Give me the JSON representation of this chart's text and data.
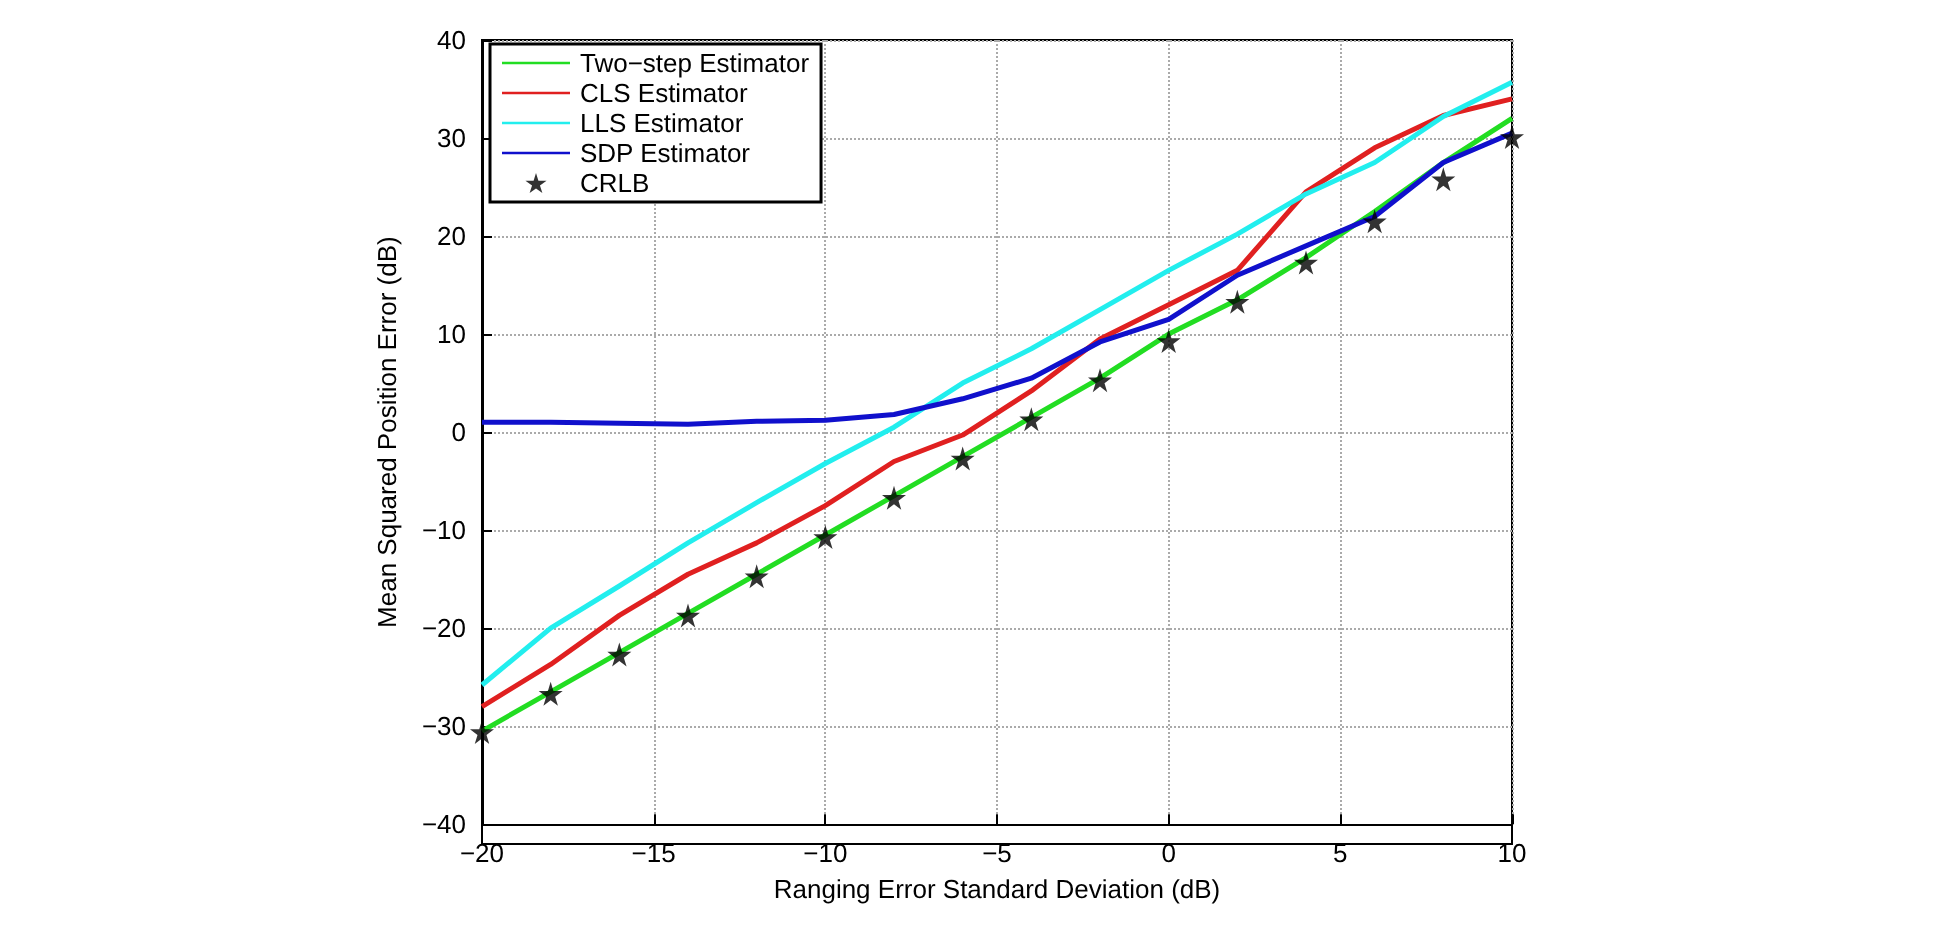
{
  "chart_data": {
    "type": "line",
    "xlabel": "Ranging Error Standard Deviation (dB)",
    "ylabel": "Mean Squared Position Error (dB)",
    "x": [
      -20,
      -18,
      -16,
      -14,
      -12,
      -10,
      -8,
      -6,
      -4,
      -2,
      0,
      2,
      4,
      6,
      8,
      10
    ],
    "series": [
      {
        "name": "Two−step Estimator",
        "color": "#22dd22",
        "values": [
          -30.5,
          -26.5,
          -22.5,
          -18.5,
          -14.5,
          -10.5,
          -6.5,
          -2.5,
          1.5,
          5.5,
          10,
          13.5,
          17.8,
          22.5,
          27.5,
          32
        ]
      },
      {
        "name": "CLS Estimator",
        "color": "#e02020",
        "values": [
          -28,
          -23.7,
          -18.7,
          -14.5,
          -11.3,
          -7.5,
          -3,
          -0.3,
          4.2,
          9.5,
          13,
          16.5,
          24.5,
          29,
          32.3,
          34
        ]
      },
      {
        "name": "LLS Estimator",
        "color": "#22eeee",
        "values": [
          -25.8,
          -20,
          -15.7,
          -11.3,
          -7.2,
          -3.2,
          0.5,
          5,
          8.5,
          12.5,
          16.5,
          20.2,
          24.3,
          27.5,
          32.2,
          35.7
        ]
      },
      {
        "name": "SDP Estimator",
        "color": "#1010cc",
        "values": [
          1,
          1,
          0.9,
          0.8,
          1.1,
          1.2,
          1.8,
          3.4,
          5.5,
          9.2,
          11.5,
          16,
          19,
          22,
          27.5,
          30.5
        ]
      },
      {
        "name": "CRLB",
        "type": "scatter",
        "marker": "star",
        "color": "#000000",
        "values": [
          -30.6,
          -26.7,
          -22.7,
          -18.7,
          -14.7,
          -10.7,
          -6.7,
          -2.7,
          1.3,
          5.3,
          9.3,
          13.3,
          17.3,
          21.5,
          25.8,
          30.1
        ]
      }
    ],
    "xlim": [
      -20,
      10
    ],
    "xticks": [
      -20,
      -15,
      -10,
      -5,
      0,
      5,
      10
    ],
    "ylim": [
      -40,
      40
    ],
    "yticks": [
      -40,
      -30,
      -20,
      -10,
      0,
      10,
      20,
      30,
      40
    ],
    "grid": true,
    "legend": "top left"
  }
}
